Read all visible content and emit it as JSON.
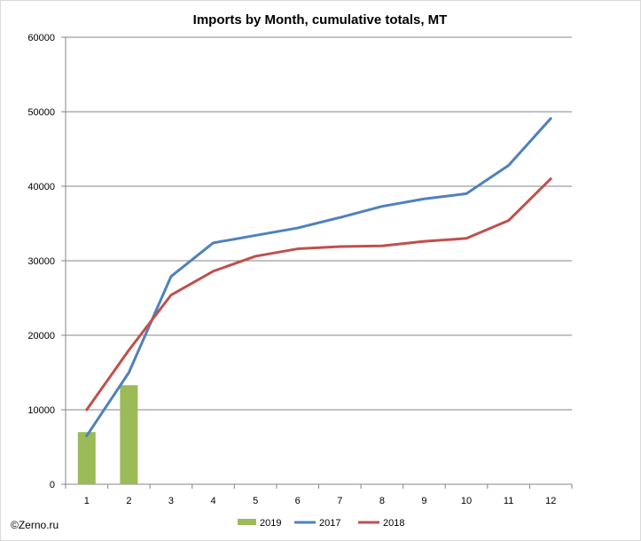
{
  "chart_data": {
    "type": "bar",
    "title": "Imports by Month, cumulative totals, MT",
    "credit": "©Zerno.ru",
    "categories": [
      "1",
      "2",
      "3",
      "4",
      "5",
      "6",
      "7",
      "8",
      "9",
      "10",
      "11",
      "12"
    ],
    "ylim": [
      0,
      60000
    ],
    "yticks": [
      0,
      10000,
      20000,
      30000,
      40000,
      50000,
      60000
    ],
    "ytick_labels": [
      "0",
      "10000",
      "20000",
      "30000",
      "40000",
      "50000",
      "60000"
    ],
    "grid": true,
    "legend_position": "bottom",
    "series": [
      {
        "name": "2019",
        "kind": "bar",
        "color": "#9bbb59",
        "values": [
          7000,
          13300,
          null,
          null,
          null,
          null,
          null,
          null,
          null,
          null,
          null,
          null
        ]
      },
      {
        "name": "2017",
        "kind": "line",
        "color": "#4f81bd",
        "values": [
          6500,
          15000,
          27900,
          32400,
          33400,
          34400,
          35800,
          37300,
          38300,
          39000,
          42800,
          49100
        ]
      },
      {
        "name": "2018",
        "kind": "line",
        "color": "#c0504d",
        "values": [
          10000,
          18000,
          25400,
          28600,
          30600,
          31600,
          31900,
          32000,
          32600,
          33000,
          35400,
          41000
        ]
      }
    ]
  }
}
